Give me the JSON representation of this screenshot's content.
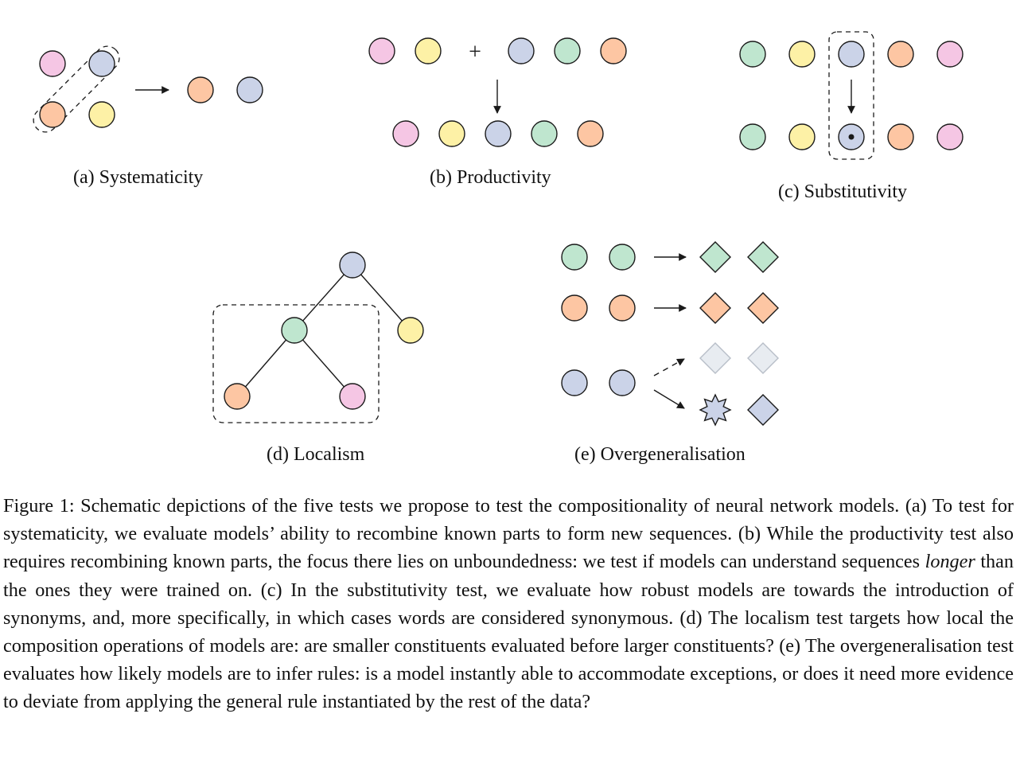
{
  "colors": {
    "pink": "#f5c6e4",
    "yellow": "#fdf1a6",
    "blue": "#cbd3e8",
    "green": "#bfe6cf",
    "orange": "#fdc6a3",
    "faded": "#e8ecf1",
    "stroke": "#1a1a1a"
  },
  "icons": {
    "plus": "plus-icon",
    "arrow": "arrow-right-icon",
    "dot": "dot-icon",
    "star": "star-icon",
    "diamond": "diamond-icon"
  },
  "panels": {
    "a": {
      "caption": "(a) Systematicity"
    },
    "b": {
      "caption": "(b) Productivity",
      "plus": "+"
    },
    "c": {
      "caption": "(c) Substitutivity"
    },
    "d": {
      "caption": "(d) Localism"
    },
    "e": {
      "caption": "(e) Overgeneralisation"
    }
  },
  "figure_caption": {
    "p1": "Figure 1: Schematic depictions of the five tests we propose to test the compositionality of neural network models. (a) To test for systematicity, we evaluate models’ ability to recombine known parts to form new sequences. (b) While the productivity test also requires recombining known parts, the focus there lies on unboundedness: we test if models can understand sequences ",
    "em": "longer",
    "p2": " than the ones they were trained on. (c) In the substitutivity test, we evaluate how robust models are towards the introduction of synonyms, and, more specifically, in which cases words are considered synonymous. (d) The localism test targets how local the composition operations of models are: are smaller constituents evaluated before larger constituents? (e) The overgeneralisation test evaluates how likely models are to infer rules: is a model instantly able to accommodate exceptions, or does it need more evidence to deviate from applying the general rule instantiated by the rest of the data?"
  }
}
